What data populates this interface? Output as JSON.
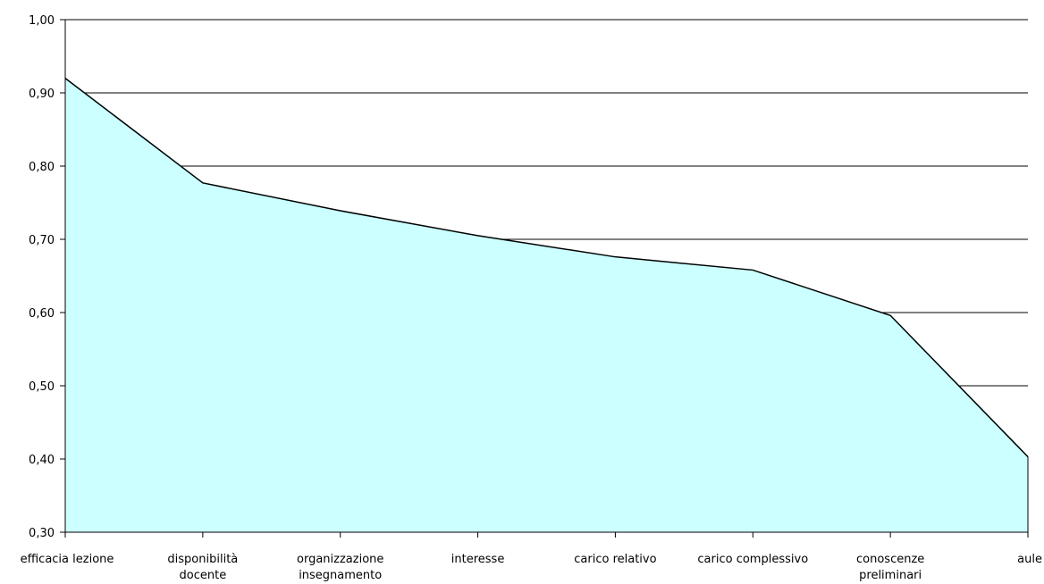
{
  "chart_data": {
    "type": "area",
    "categories": [
      [
        "efficacia lezione"
      ],
      [
        "disponibilità",
        "docente"
      ],
      [
        "organizzazione",
        "insegnamento"
      ],
      [
        "interesse"
      ],
      [
        "carico relativo"
      ],
      [
        "carico complessivo"
      ],
      [
        "conoscenze",
        "preliminari"
      ],
      [
        "aule"
      ]
    ],
    "values": [
      0.92,
      0.777,
      0.739,
      0.705,
      0.676,
      0.658,
      0.596,
      0.403
    ],
    "ylim": [
      0.3,
      1.0
    ],
    "yticks": [
      "0,30",
      "0,40",
      "0,50",
      "0,60",
      "0,70",
      "0,80",
      "0,90",
      "1,00"
    ],
    "title": "",
    "xlabel": "",
    "ylabel": "",
    "grid": "horizontal",
    "legend": "none",
    "colors": {
      "fill": "#ccffff",
      "line": "#000000",
      "grid": "#000000",
      "axis": "#000000"
    }
  }
}
